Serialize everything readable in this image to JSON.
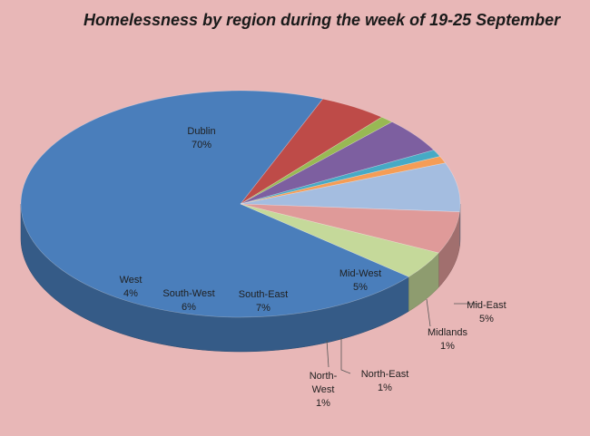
{
  "chart_data": {
    "type": "pie",
    "title": "Homelessness by region during the week of 19-25 September",
    "slices": [
      {
        "label": "Dublin",
        "value": 70,
        "value_label": "70%",
        "color": "#4a7ebb"
      },
      {
        "label": "Mid-East",
        "value": 5,
        "value_label": "5%",
        "color": "#be4b48"
      },
      {
        "label": "Midlands",
        "value": 1,
        "value_label": "1%",
        "color": "#98b954"
      },
      {
        "label": "Mid-West",
        "value": 5,
        "value_label": "5%",
        "color": "#7d5fa0"
      },
      {
        "label": "North-East",
        "value": 1,
        "value_label": "1%",
        "color": "#46aac5"
      },
      {
        "label": "North-West",
        "value": 1,
        "value_label": "1%",
        "color": "#f59d56"
      },
      {
        "label": "South-East",
        "value": 7,
        "value_label": "7%",
        "color": "#a4bde0"
      },
      {
        "label": "South-West",
        "value": 6,
        "value_label": "6%",
        "color": "#df9a99"
      },
      {
        "label": "West",
        "value": 4,
        "value_label": "4%",
        "color": "#c5d99a"
      }
    ]
  }
}
